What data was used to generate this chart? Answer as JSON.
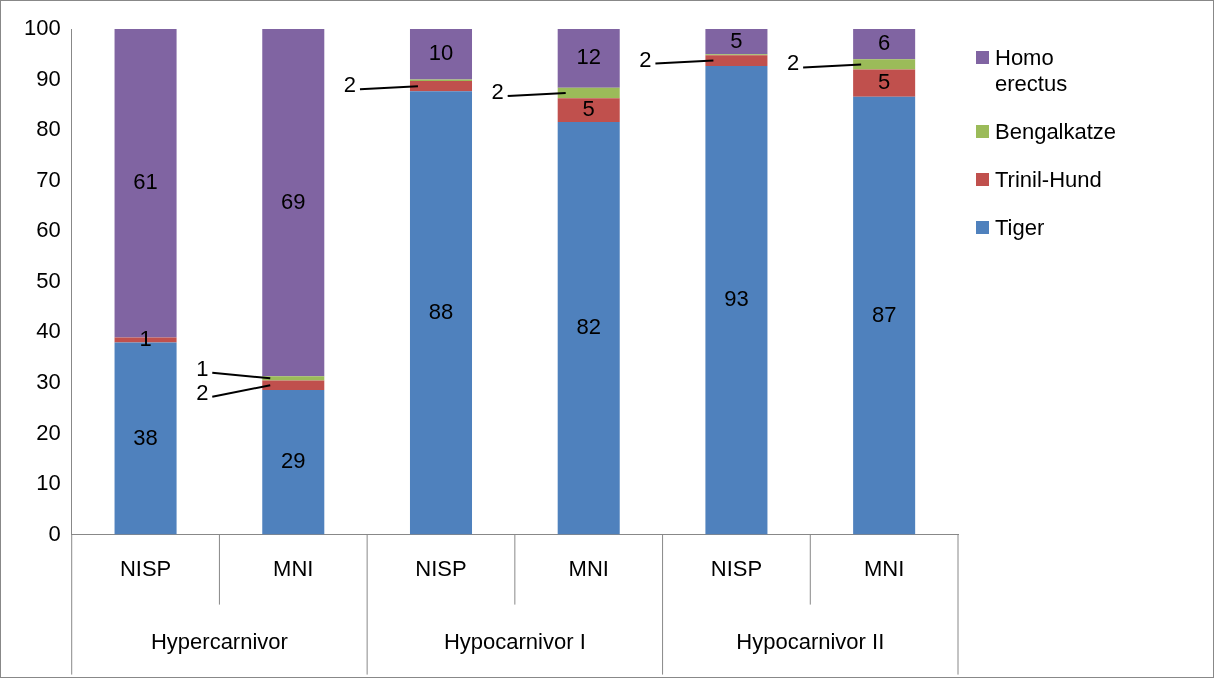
{
  "chart_data": {
    "type": "bar",
    "stacked": true,
    "categories": [
      "NISP",
      "MNI",
      "NISP",
      "MNI",
      "NISP",
      "MNI"
    ],
    "annotations": [
      "Hypercarnivor",
      "Hypocarnivor I",
      "Hypocarnivor II"
    ],
    "series": [
      {
        "name": "Tiger",
        "color": "#4f81bd",
        "values": [
          38,
          28.6,
          87.7,
          81.6,
          92.7,
          86.6
        ],
        "value_labels": [
          "38",
          "29",
          "88",
          "82",
          "93",
          "87"
        ]
      },
      {
        "name": "Trinil-Hund",
        "color": "#c0504d",
        "values": [
          1,
          1.9,
          2,
          4.7,
          2.1,
          5.4
        ],
        "value_labels": [
          "1",
          "2",
          "2",
          "5",
          "2",
          "5"
        ]
      },
      {
        "name": "Bengalkatze",
        "color": "#9bbb59",
        "values": [
          0,
          0.8,
          0.3,
          2.1,
          0.2,
          2
        ],
        "value_labels": [
          null,
          "1",
          null,
          "2",
          null,
          "2"
        ]
      },
      {
        "name": "Homo erectus",
        "color": "#8064a2",
        "values": [
          61,
          68.7,
          10,
          11.6,
          5,
          6
        ],
        "value_labels": [
          "61",
          "69",
          "10",
          "12",
          "5",
          "6"
        ]
      }
    ],
    "ylim": [
      0,
      100
    ],
    "yticks": [
      0,
      10,
      20,
      30,
      40,
      50,
      60,
      70,
      80,
      90,
      100
    ],
    "legend": "right",
    "grid": false
  }
}
